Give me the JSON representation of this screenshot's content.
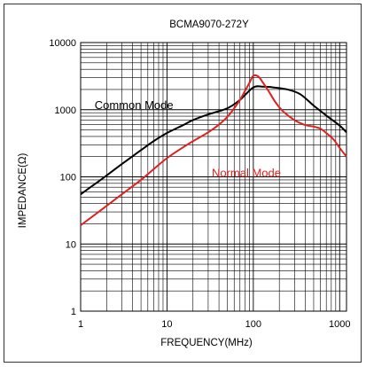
{
  "chart_data": {
    "type": "line",
    "title": "BCMA9070-272Y",
    "xlabel": "FREQUENCY(MHz)",
    "ylabel": "IMPEDANCE(Ω)",
    "xscale": "log",
    "yscale": "log",
    "xlim": [
      1,
      1200
    ],
    "ylim": [
      1,
      10000
    ],
    "grid": true,
    "xticks": [
      {
        "value": 1,
        "label": "1"
      },
      {
        "value": 10,
        "label": "10"
      },
      {
        "value": 100,
        "label": "100"
      },
      {
        "value": 1000,
        "label": "1000"
      }
    ],
    "yticks": [
      {
        "value": 1,
        "label": "1"
      },
      {
        "value": 10,
        "label": "10"
      },
      {
        "value": 100,
        "label": "100"
      },
      {
        "value": 1000,
        "label": "1000"
      },
      {
        "value": 10000,
        "label": "10000"
      }
    ],
    "series": [
      {
        "name": "Common Mode",
        "color": "#000000",
        "label_at": [
          1.45,
          1030
        ],
        "x": [
          1,
          1.5,
          2,
          3,
          5,
          7,
          10,
          15,
          20,
          30,
          50,
          70,
          100,
          130,
          170,
          250,
          350,
          500,
          700,
          1000,
          1200
        ],
        "y": [
          55,
          80,
          105,
          155,
          250,
          340,
          450,
          580,
          700,
          850,
          1050,
          1400,
          2150,
          2200,
          2150,
          2000,
          1700,
          1150,
          820,
          580,
          460
        ]
      },
      {
        "name": "Normal Mode",
        "color": "#e02020",
        "label_at": [
          33,
          100
        ],
        "x": [
          1,
          1.5,
          2,
          3,
          5,
          7,
          10,
          15,
          20,
          30,
          40,
          50,
          60,
          70,
          80,
          90,
          100,
          115,
          130,
          150,
          180,
          220,
          300,
          400,
          500,
          600,
          700,
          850,
          1000,
          1200
        ],
        "y": [
          19,
          28,
          37,
          55,
          90,
          130,
          190,
          270,
          340,
          460,
          600,
          780,
          1050,
          1400,
          1900,
          2500,
          3200,
          3100,
          2500,
          1900,
          1300,
          950,
          700,
          590,
          560,
          520,
          450,
          360,
          270,
          200
        ]
      }
    ]
  }
}
